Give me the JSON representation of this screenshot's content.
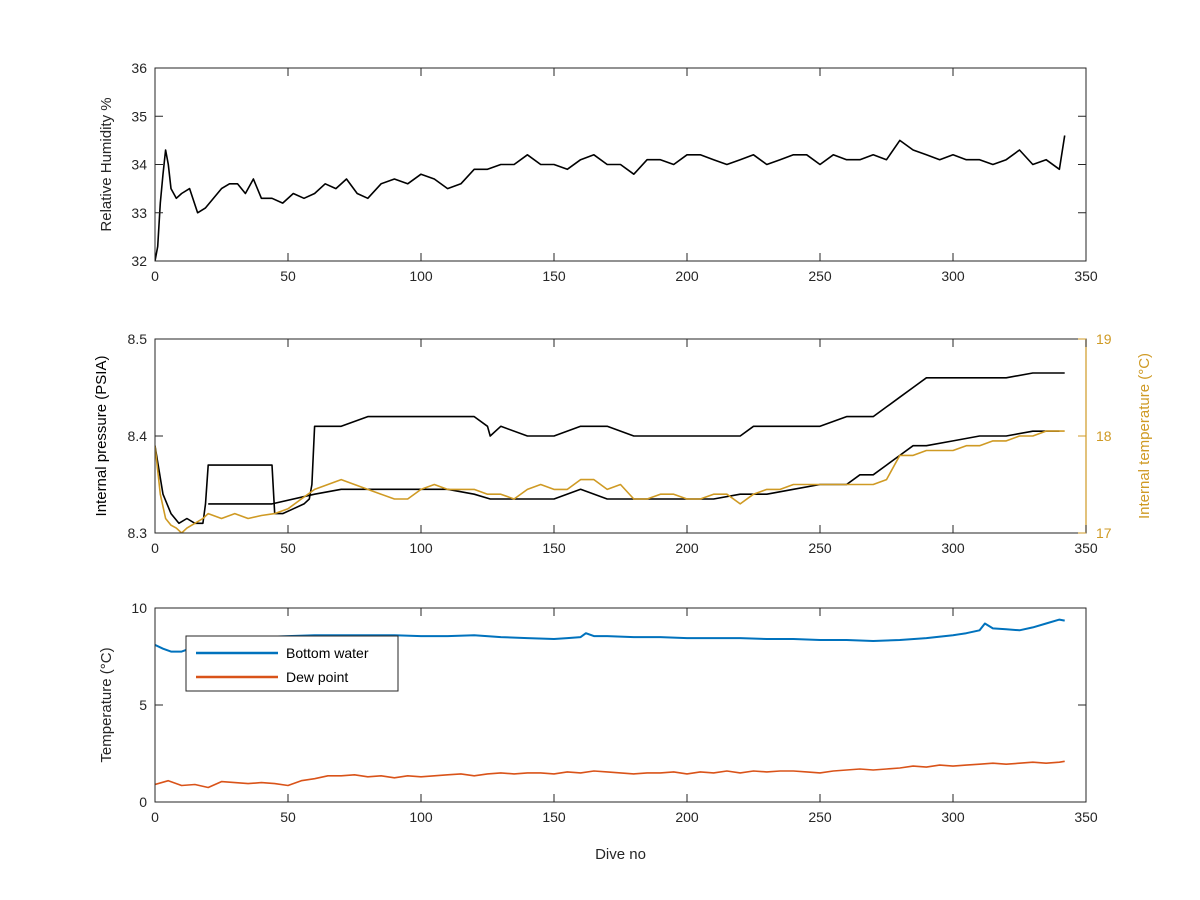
{
  "chart_data": [
    {
      "type": "line",
      "title": "",
      "xlabel": "",
      "ylabel": "Relative Humidity %",
      "xlim": [
        0,
        350
      ],
      "ylim": [
        32,
        36
      ],
      "xticks": [
        0,
        50,
        100,
        150,
        200,
        250,
        300,
        350
      ],
      "yticks": [
        32,
        33,
        34,
        35,
        36
      ],
      "series": [
        {
          "color": "#000000",
          "x": [
            0,
            1,
            2,
            3,
            4,
            5,
            6,
            8,
            10,
            13,
            16,
            19,
            22,
            25,
            28,
            31,
            34,
            37,
            40,
            44,
            48,
            52,
            56,
            60,
            64,
            68,
            72,
            76,
            80,
            85,
            90,
            95,
            100,
            105,
            110,
            115,
            120,
            125,
            130,
            135,
            140,
            145,
            150,
            155,
            160,
            165,
            170,
            175,
            180,
            185,
            190,
            195,
            200,
            205,
            210,
            215,
            220,
            225,
            230,
            235,
            240,
            245,
            250,
            255,
            260,
            265,
            270,
            275,
            280,
            285,
            290,
            295,
            300,
            305,
            310,
            315,
            320,
            325,
            330,
            335,
            340,
            342
          ],
          "y": [
            32.0,
            32.3,
            33.2,
            33.8,
            34.3,
            34.0,
            33.5,
            33.3,
            33.4,
            33.5,
            33.0,
            33.1,
            33.3,
            33.5,
            33.6,
            33.6,
            33.4,
            33.7,
            33.3,
            33.3,
            33.2,
            33.4,
            33.3,
            33.4,
            33.6,
            33.5,
            33.7,
            33.4,
            33.3,
            33.6,
            33.7,
            33.6,
            33.8,
            33.7,
            33.5,
            33.6,
            33.9,
            33.9,
            34.0,
            34.0,
            34.2,
            34.0,
            34.0,
            33.9,
            34.1,
            34.2,
            34.0,
            34.0,
            33.8,
            34.1,
            34.1,
            34.0,
            34.2,
            34.2,
            34.1,
            34.0,
            34.1,
            34.2,
            34.0,
            34.1,
            34.2,
            34.2,
            34.0,
            34.2,
            34.1,
            34.1,
            34.2,
            34.1,
            34.5,
            34.3,
            34.2,
            34.1,
            34.2,
            34.1,
            34.1,
            34.0,
            34.1,
            34.3,
            34.0,
            34.1,
            33.9,
            34.6
          ]
        }
      ]
    },
    {
      "type": "line",
      "title": "",
      "xlabel": "",
      "ylabel": "Internal pressure (PSIA)",
      "ylabel_right": "Internal temperature (°C)",
      "xlim": [
        0,
        350
      ],
      "ylim": [
        8.3,
        8.5
      ],
      "ylim_right": [
        17,
        19
      ],
      "xticks": [
        0,
        50,
        100,
        150,
        200,
        250,
        300,
        350
      ],
      "yticks": [
        8.3,
        8.4,
        8.5
      ],
      "yticks_right": [
        17,
        18,
        19
      ],
      "series": [
        {
          "axis": "left",
          "color": "#000000",
          "x": [
            0,
            3,
            6,
            9,
            12,
            15,
            18,
            19,
            20,
            30,
            44,
            45,
            48,
            52,
            56,
            58,
            59,
            60,
            70,
            80,
            90,
            100,
            110,
            120,
            125,
            126,
            130,
            140,
            150,
            160,
            170,
            180,
            190,
            200,
            210,
            220,
            225,
            230,
            240,
            250,
            260,
            265,
            270,
            275,
            280,
            285,
            290,
            300,
            310,
            320,
            330,
            340,
            342
          ],
          "y": [
            8.39,
            8.34,
            8.32,
            8.31,
            8.315,
            8.31,
            8.31,
            8.33,
            8.37,
            8.37,
            8.37,
            8.32,
            8.32,
            8.325,
            8.33,
            8.335,
            8.35,
            8.41,
            8.41,
            8.42,
            8.42,
            8.42,
            8.42,
            8.42,
            8.41,
            8.4,
            8.41,
            8.4,
            8.4,
            8.41,
            8.41,
            8.4,
            8.4,
            8.4,
            8.4,
            8.4,
            8.41,
            8.41,
            8.41,
            8.41,
            8.42,
            8.42,
            8.42,
            8.43,
            8.44,
            8.45,
            8.46,
            8.46,
            8.46,
            8.46,
            8.465,
            8.465,
            8.465
          ]
        },
        {
          "axis": "left",
          "color": "#000000",
          "x": [
            20,
            30,
            44,
            60,
            70,
            80,
            90,
            100,
            110,
            120,
            126,
            130,
            140,
            150,
            160,
            170,
            180,
            190,
            200,
            210,
            220,
            230,
            240,
            250,
            260,
            265,
            270,
            275,
            280,
            285,
            290,
            300,
            310,
            320,
            330,
            340
          ],
          "y": [
            8.33,
            8.33,
            8.33,
            8.34,
            8.345,
            8.345,
            8.345,
            8.345,
            8.345,
            8.34,
            8.335,
            8.335,
            8.335,
            8.335,
            8.345,
            8.335,
            8.335,
            8.335,
            8.335,
            8.335,
            8.34,
            8.34,
            8.345,
            8.35,
            8.35,
            8.36,
            8.36,
            8.37,
            8.38,
            8.39,
            8.39,
            8.395,
            8.4,
            8.4,
            8.405,
            8.405
          ]
        },
        {
          "axis": "right",
          "color": "#cf9a24",
          "x": [
            0,
            2,
            4,
            6,
            8,
            10,
            12,
            15,
            18,
            20,
            25,
            30,
            35,
            40,
            45,
            50,
            55,
            60,
            65,
            70,
            75,
            80,
            85,
            90,
            95,
            100,
            105,
            110,
            115,
            120,
            125,
            130,
            135,
            140,
            145,
            150,
            155,
            160,
            165,
            170,
            175,
            180,
            185,
            190,
            195,
            200,
            205,
            210,
            215,
            220,
            225,
            230,
            235,
            240,
            245,
            250,
            255,
            260,
            265,
            270,
            275,
            280,
            285,
            290,
            295,
            300,
            305,
            310,
            315,
            320,
            325,
            330,
            335,
            340,
            342
          ],
          "y": [
            17.9,
            17.4,
            17.15,
            17.08,
            17.05,
            17.0,
            17.05,
            17.1,
            17.15,
            17.2,
            17.15,
            17.2,
            17.15,
            17.18,
            17.2,
            17.25,
            17.35,
            17.45,
            17.5,
            17.55,
            17.5,
            17.45,
            17.4,
            17.35,
            17.35,
            17.45,
            17.5,
            17.45,
            17.45,
            17.45,
            17.4,
            17.4,
            17.35,
            17.45,
            17.5,
            17.45,
            17.45,
            17.55,
            17.55,
            17.45,
            17.5,
            17.35,
            17.35,
            17.4,
            17.4,
            17.35,
            17.35,
            17.4,
            17.4,
            17.3,
            17.4,
            17.45,
            17.45,
            17.5,
            17.5,
            17.5,
            17.5,
            17.5,
            17.5,
            17.5,
            17.55,
            17.8,
            17.8,
            17.85,
            17.85,
            17.85,
            17.9,
            17.9,
            17.95,
            17.95,
            18.0,
            18.0,
            18.05,
            18.05,
            18.05
          ]
        }
      ]
    },
    {
      "type": "line",
      "title": "",
      "xlabel": "Dive no",
      "ylabel": "Temperature (°C)",
      "xlim": [
        0,
        350
      ],
      "ylim": [
        0,
        10
      ],
      "xticks": [
        0,
        50,
        100,
        150,
        200,
        250,
        300,
        350
      ],
      "yticks": [
        0,
        5,
        10
      ],
      "legend": "top-left",
      "series": [
        {
          "name": "Bottom water",
          "color": "#0072bd",
          "x": [
            0,
            3,
            6,
            10,
            13,
            15,
            20,
            30,
            40,
            50,
            60,
            70,
            80,
            90,
            100,
            110,
            120,
            130,
            140,
            150,
            155,
            160,
            162,
            165,
            170,
            180,
            190,
            200,
            210,
            220,
            230,
            240,
            250,
            260,
            270,
            280,
            290,
            300,
            305,
            310,
            312,
            315,
            320,
            325,
            330,
            335,
            340,
            342
          ],
          "y": [
            8.1,
            7.9,
            7.75,
            7.75,
            7.9,
            8.2,
            8.4,
            8.45,
            8.5,
            8.55,
            8.6,
            8.6,
            8.6,
            8.6,
            8.55,
            8.55,
            8.6,
            8.5,
            8.45,
            8.4,
            8.45,
            8.5,
            8.7,
            8.55,
            8.55,
            8.5,
            8.5,
            8.45,
            8.45,
            8.45,
            8.4,
            8.4,
            8.35,
            8.35,
            8.3,
            8.35,
            8.45,
            8.6,
            8.7,
            8.85,
            9.2,
            8.95,
            8.9,
            8.85,
            9.0,
            9.2,
            9.4,
            9.35
          ]
        },
        {
          "name": "Dew point",
          "color": "#d95319",
          "x": [
            0,
            5,
            10,
            15,
            20,
            25,
            30,
            35,
            40,
            45,
            50,
            55,
            60,
            65,
            70,
            75,
            80,
            85,
            90,
            95,
            100,
            105,
            110,
            115,
            120,
            125,
            130,
            135,
            140,
            145,
            150,
            155,
            160,
            165,
            170,
            175,
            180,
            185,
            190,
            195,
            200,
            205,
            210,
            215,
            220,
            225,
            230,
            235,
            240,
            245,
            250,
            255,
            260,
            265,
            270,
            275,
            280,
            285,
            290,
            295,
            300,
            305,
            310,
            315,
            320,
            325,
            330,
            335,
            340,
            342
          ],
          "y": [
            0.9,
            1.1,
            0.85,
            0.9,
            0.75,
            1.05,
            1.0,
            0.95,
            1.0,
            0.95,
            0.85,
            1.1,
            1.2,
            1.35,
            1.35,
            1.4,
            1.3,
            1.35,
            1.25,
            1.35,
            1.3,
            1.35,
            1.4,
            1.45,
            1.35,
            1.45,
            1.5,
            1.45,
            1.5,
            1.5,
            1.45,
            1.55,
            1.5,
            1.6,
            1.55,
            1.5,
            1.45,
            1.5,
            1.5,
            1.55,
            1.45,
            1.55,
            1.5,
            1.6,
            1.5,
            1.6,
            1.55,
            1.6,
            1.6,
            1.55,
            1.5,
            1.6,
            1.65,
            1.7,
            1.65,
            1.7,
            1.75,
            1.85,
            1.8,
            1.9,
            1.85,
            1.9,
            1.95,
            2.0,
            1.95,
            2.0,
            2.05,
            2.0,
            2.05,
            2.1
          ]
        }
      ]
    }
  ]
}
